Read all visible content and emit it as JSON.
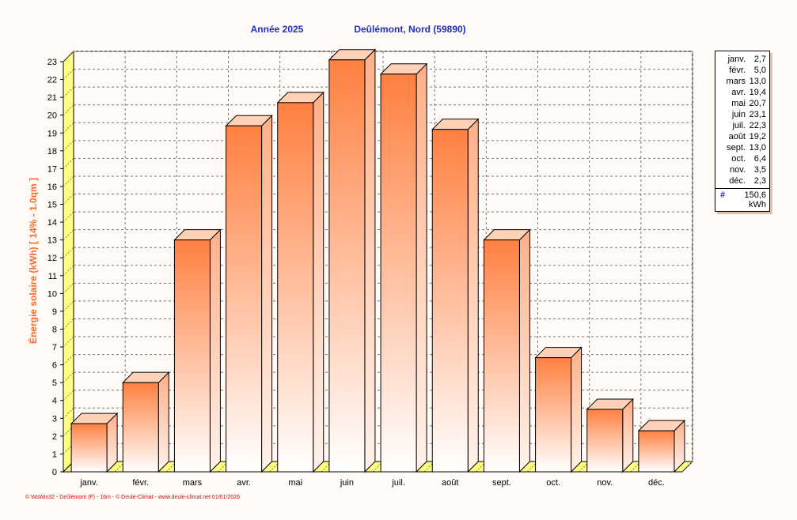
{
  "chart_data": {
    "type": "bar",
    "title_left": "Année  2025",
    "title_right": "Deûlémont, Nord (59890)",
    "ylabel": "Énergie solaire  (kWh)    [ 14% - 1.0qm ]",
    "categories": [
      "janv.",
      "févr.",
      "mars",
      "avr.",
      "mai",
      "juin",
      "juil.",
      "août",
      "sept.",
      "oct.",
      "nov.",
      "déc."
    ],
    "values": [
      2.7,
      5.0,
      13.0,
      19.4,
      20.7,
      23.1,
      22.3,
      19.2,
      13.0,
      6.4,
      3.5,
      2.3
    ],
    "ylim": [
      0,
      23
    ],
    "yticks": [
      0,
      1,
      2,
      3,
      4,
      5,
      6,
      7,
      8,
      9,
      10,
      11,
      12,
      13,
      14,
      15,
      16,
      17,
      18,
      19,
      20,
      21,
      22,
      23
    ],
    "grid": true,
    "legend_position": "right",
    "legend": {
      "rows": [
        {
          "label": "janv.",
          "value": "2,7"
        },
        {
          "label": "févr.",
          "value": "5,0"
        },
        {
          "label": "mars",
          "value": "13,0"
        },
        {
          "label": "avr.",
          "value": "19,4"
        },
        {
          "label": "mai",
          "value": "20,7"
        },
        {
          "label": "juin",
          "value": "23,1"
        },
        {
          "label": "juil.",
          "value": "22,3"
        },
        {
          "label": "août",
          "value": "19,2"
        },
        {
          "label": "sept.",
          "value": "13,0"
        },
        {
          "label": "oct.",
          "value": "6,4"
        },
        {
          "label": "nov.",
          "value": "3,5"
        },
        {
          "label": "déc.",
          "value": "2,3"
        }
      ],
      "total_symbol": "#",
      "total_value": "150,6",
      "total_unit": "kWh"
    },
    "colors": {
      "bar_top": "#ff8040",
      "bar_bottom": "#ffffff",
      "floor": "#ffff80",
      "title": "#1f2fbf",
      "ylabel": "#ff6a2a",
      "footer": "#d01010"
    }
  },
  "footer": "© WsWin32 - Deûlémont (F) - 16m - © Deule-Climat - www.deule-climat.net  01/01/2026"
}
